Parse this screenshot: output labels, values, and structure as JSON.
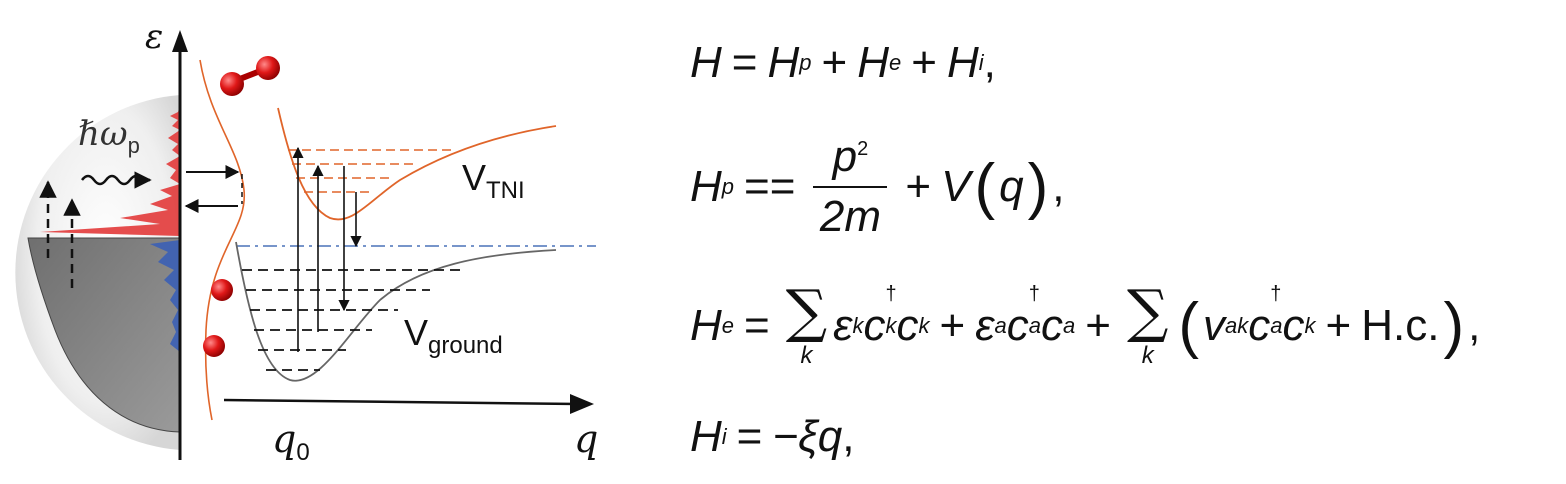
{
  "diagram": {
    "axis_energy": "ε",
    "axis_coordinate": "q",
    "photon_label": "ℏω",
    "photon_sub": "p",
    "curve_upper_label": "V",
    "curve_upper_sub": "TNI",
    "curve_lower_label": "V",
    "curve_lower_sub": "ground",
    "q0_label": "q",
    "q0_sub": "0",
    "colors": {
      "tni_curve": "#e0652a",
      "ground_curve": "#666666",
      "fermi_line": "#4a72b8",
      "occupied_dos": "#3b5fb5",
      "excited_dos": "#e23a3a",
      "atom": "#e01818"
    }
  },
  "equations": {
    "eq1": {
      "lhs": "H",
      "t1": "H",
      "t1_sub": "p",
      "t2": "H",
      "t2_sub": "e",
      "t3": "H",
      "t3_sub": "i",
      "end": ","
    },
    "eq2": {
      "lhs": "H",
      "lhs_sub": "p",
      "op": "==",
      "num": "p",
      "num_sup": "2",
      "den": "2m",
      "term": "V",
      "arg": "q",
      "end": ","
    },
    "eq3": {
      "lhs": "H",
      "lhs_sub": "e",
      "sum_index": "k",
      "eps_k": "ε",
      "eps_k_sub": "k",
      "c": "c",
      "dagger": "†",
      "k": "k",
      "a": "a",
      "eps_a": "ε",
      "eps_a_sub": "a",
      "v": "v",
      "v_sub": "ak",
      "hc": "H.c.",
      "end": ","
    },
    "eq4": {
      "lhs": "H",
      "lhs_sub": "i",
      "rhs": "−ξq",
      "end": ","
    }
  }
}
